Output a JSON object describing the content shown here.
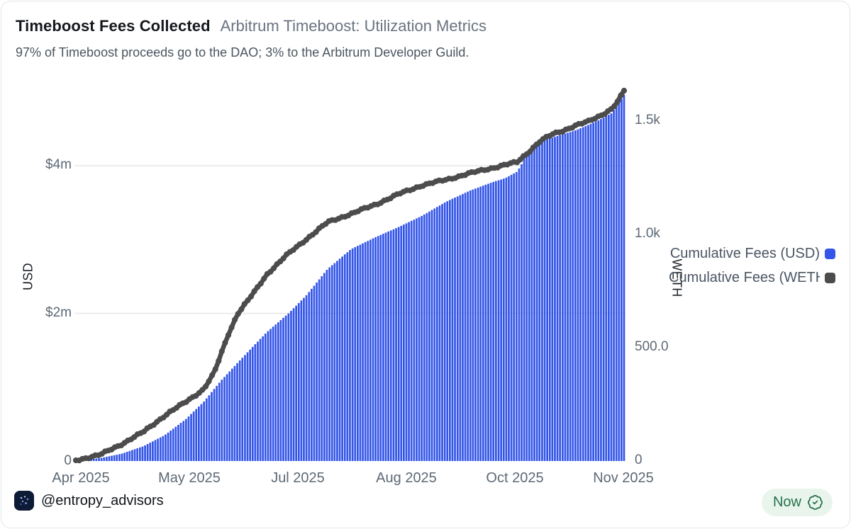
{
  "header": {
    "title": "Timeboost Fees Collected",
    "subtitle": "Arbitrum Timeboost: Utilization Metrics",
    "description": "97% of Timeboost proceeds go to the DAO; 3% to the Arbitrum Developer Guild."
  },
  "footer": {
    "handle": "@entropy_advisors",
    "badge_label": "Now"
  },
  "colors": {
    "bar_blue": "#3355E8",
    "line_gray": "#4C4C4C",
    "grid": "#e7e7e7",
    "badge_green": "#25714c",
    "badge_bg": "#e9f5ec"
  },
  "chart_data": {
    "type": "combo",
    "title": "Timeboost Fees Collected",
    "grid": "horizontal",
    "legend_position": "right",
    "x_axis": {
      "ticks": [
        {
          "label": "Apr 2025",
          "pos": 0.009
        },
        {
          "label": "May 2025",
          "pos": 0.207
        },
        {
          "label": "Jul 2025",
          "pos": 0.405
        },
        {
          "label": "Aug 2025",
          "pos": 0.603
        },
        {
          "label": "Oct 2025",
          "pos": 0.801
        },
        {
          "label": "Nov 2025",
          "pos": 0.999
        }
      ]
    },
    "left_axis": {
      "title": "USD",
      "unit": "USD millions",
      "range": [
        0,
        5.1
      ],
      "ticks": [
        {
          "label": "0",
          "value": 0
        },
        {
          "label": "$2m",
          "value": 2
        },
        {
          "label": "$4m",
          "value": 4
        }
      ]
    },
    "right_axis": {
      "title": "WETH",
      "unit": "WETH",
      "range": [
        0,
        1660
      ],
      "ticks": [
        {
          "label": "0",
          "value": 0
        },
        {
          "label": "500.0",
          "value": 500
        },
        {
          "label": "1.0k",
          "value": 1000
        },
        {
          "label": "1.5k",
          "value": 1500
        }
      ]
    },
    "series": [
      {
        "name": "Cumulative Fees (USD)",
        "type": "bar",
        "axis": "left",
        "color": "#3355E8",
        "points": [
          [
            0.0,
            0.0
          ],
          [
            0.045,
            0.04
          ],
          [
            0.084,
            0.1
          ],
          [
            0.123,
            0.2
          ],
          [
            0.162,
            0.35
          ],
          [
            0.201,
            0.57
          ],
          [
            0.233,
            0.8
          ],
          [
            0.265,
            1.09
          ],
          [
            0.295,
            1.33
          ],
          [
            0.323,
            1.55
          ],
          [
            0.349,
            1.75
          ],
          [
            0.388,
            2.0
          ],
          [
            0.42,
            2.24
          ],
          [
            0.459,
            2.6
          ],
          [
            0.502,
            2.87
          ],
          [
            0.546,
            3.03
          ],
          [
            0.589,
            3.17
          ],
          [
            0.631,
            3.32
          ],
          [
            0.675,
            3.51
          ],
          [
            0.718,
            3.66
          ],
          [
            0.761,
            3.78
          ],
          [
            0.783,
            3.83
          ],
          [
            0.805,
            3.92
          ],
          [
            0.813,
            4.02
          ],
          [
            0.825,
            4.21
          ],
          [
            0.847,
            4.33
          ],
          [
            0.869,
            4.38
          ],
          [
            0.89,
            4.43
          ],
          [
            0.912,
            4.48
          ],
          [
            0.934,
            4.55
          ],
          [
            0.955,
            4.62
          ],
          [
            0.977,
            4.71
          ],
          [
            1.0,
            4.96
          ]
        ]
      },
      {
        "name": "Cumulative Fees (WETH)",
        "type": "line",
        "axis": "right",
        "color": "#4C4C4C",
        "points": [
          [
            0.0,
            0
          ],
          [
            0.045,
            25
          ],
          [
            0.084,
            72
          ],
          [
            0.123,
            125
          ],
          [
            0.162,
            197
          ],
          [
            0.201,
            259
          ],
          [
            0.233,
            313
          ],
          [
            0.252,
            384
          ],
          [
            0.278,
            556
          ],
          [
            0.295,
            647
          ],
          [
            0.323,
            734
          ],
          [
            0.349,
            822
          ],
          [
            0.382,
            900
          ],
          [
            0.42,
            975
          ],
          [
            0.459,
            1050
          ],
          [
            0.502,
            1088
          ],
          [
            0.546,
            1128
          ],
          [
            0.589,
            1175
          ],
          [
            0.631,
            1213
          ],
          [
            0.675,
            1238
          ],
          [
            0.718,
            1266
          ],
          [
            0.761,
            1291
          ],
          [
            0.805,
            1316
          ],
          [
            0.825,
            1359
          ],
          [
            0.847,
            1409
          ],
          [
            0.869,
            1438
          ],
          [
            0.89,
            1456
          ],
          [
            0.912,
            1478
          ],
          [
            0.934,
            1494
          ],
          [
            0.955,
            1519
          ],
          [
            0.977,
            1550
          ],
          [
            0.99,
            1588
          ],
          [
            1.0,
            1631
          ]
        ]
      }
    ]
  }
}
